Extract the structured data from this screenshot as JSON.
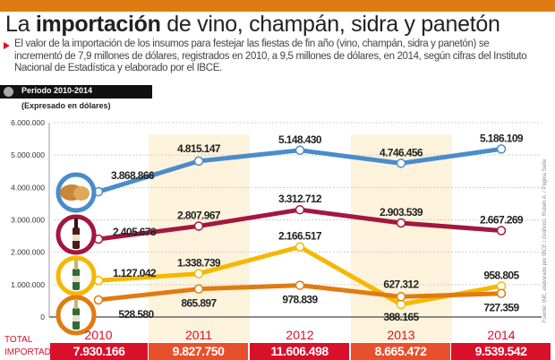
{
  "header": {
    "title_pre": "La ",
    "title_bold": "importación",
    "title_post": " de vino, champán, sidra y panetón",
    "description": "El valor de la importación de los insumos para festejar las fiestas de fin año (vino, champán, sidra y panetón) se incrementó de 7,9 millones de dólares, registrados en 2010, a 9,5 millones de dólares, en 2014, según cifras del Instituto Nacional de Estadística y elaborado por el IBCE.",
    "period": "Periodo 2010-2014",
    "unit": "(Expresado en dólares)"
  },
  "colors": {
    "accent": "#e07b12",
    "red": "#d9102a",
    "orange_red": "#e8502c",
    "blue": "#4a8cc9",
    "wine": "#a3173f",
    "yellow": "#f5b800",
    "orange": "#e07b12",
    "shade": "#fdf3dc"
  },
  "source": "Fuente: INE, elaborado por IBCE / Gráficos: Rubén A. / Página Siete",
  "chart_data": {
    "type": "line",
    "categories": [
      "2010",
      "2011",
      "2012",
      "2013",
      "2014"
    ],
    "ylim": [
      0,
      6000000
    ],
    "yticks": [
      "0",
      "1.000.000",
      "2.000.000",
      "3.000.000",
      "4.000.000",
      "5.000.000",
      "6.000.000"
    ],
    "grid": true,
    "series": [
      {
        "icon": "panettone-icon",
        "color": "#4a8cc9",
        "values": [
          3868866,
          4815147,
          5148430,
          4746456,
          5186109
        ],
        "labels": [
          "3.868.866",
          "4.815.147",
          "5.148.430",
          "4.746.456",
          "5.186.109"
        ]
      },
      {
        "icon": "wine-bottle-icon",
        "color": "#a3173f",
        "values": [
          2405678,
          2807967,
          3312712,
          2903539,
          2667269
        ],
        "labels": [
          "2.405.678",
          "2.807.967",
          "3.312.712",
          "2.903.539",
          "2.667.269"
        ]
      },
      {
        "icon": "cider-bottle-icon",
        "color": "#f5b800",
        "values": [
          1127042,
          1338739,
          2166517,
          388165,
          958805
        ],
        "labels": [
          "1.127.042",
          "1.338.739",
          "2.166.517",
          "388.165",
          "958.805"
        ]
      },
      {
        "icon": "champagne-bottle-icon",
        "color": "#e07b12",
        "values": [
          528580,
          865897,
          978839,
          627312,
          727359
        ],
        "labels": [
          "528.580",
          "865.897",
          "978.839",
          "627.312",
          "727.359"
        ]
      }
    ],
    "total_label_1": "TOTAL",
    "total_label_2": "IMPORTADO",
    "totals": [
      "7.930.166",
      "9.827.750",
      "11.606.498",
      "8.665.472",
      "9.539.542"
    ]
  }
}
